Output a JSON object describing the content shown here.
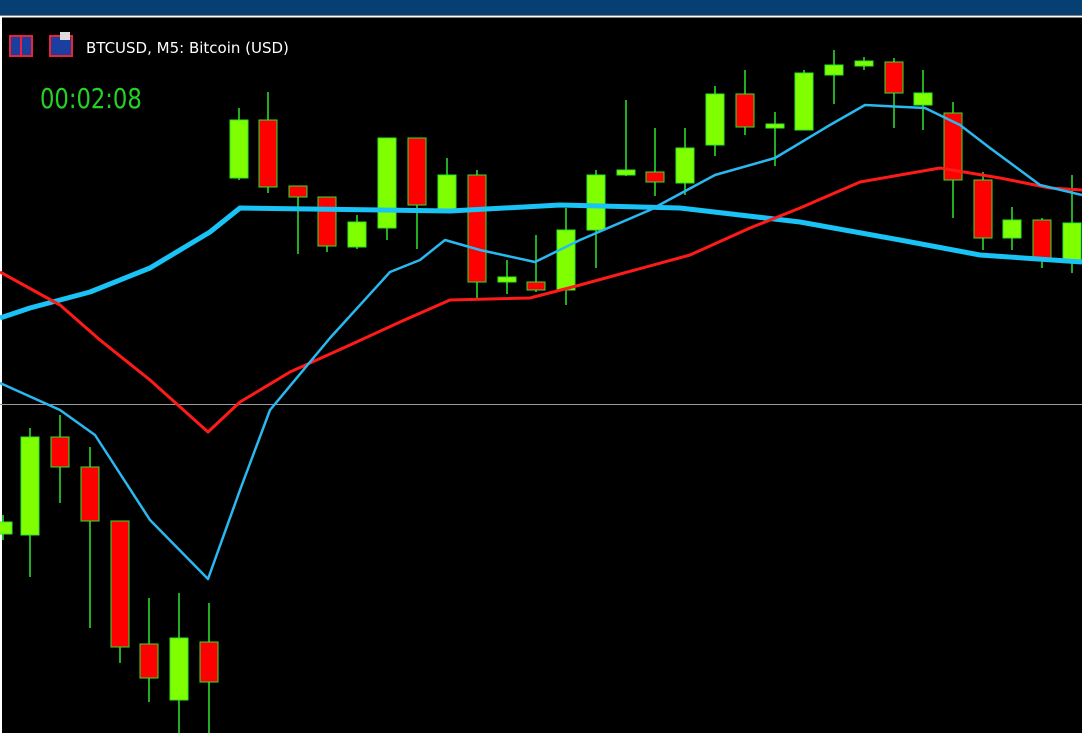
{
  "header": {
    "symbol": "BTCUSD, M5: Bitcoin (USD)",
    "timer": "00:02:08"
  }
}
